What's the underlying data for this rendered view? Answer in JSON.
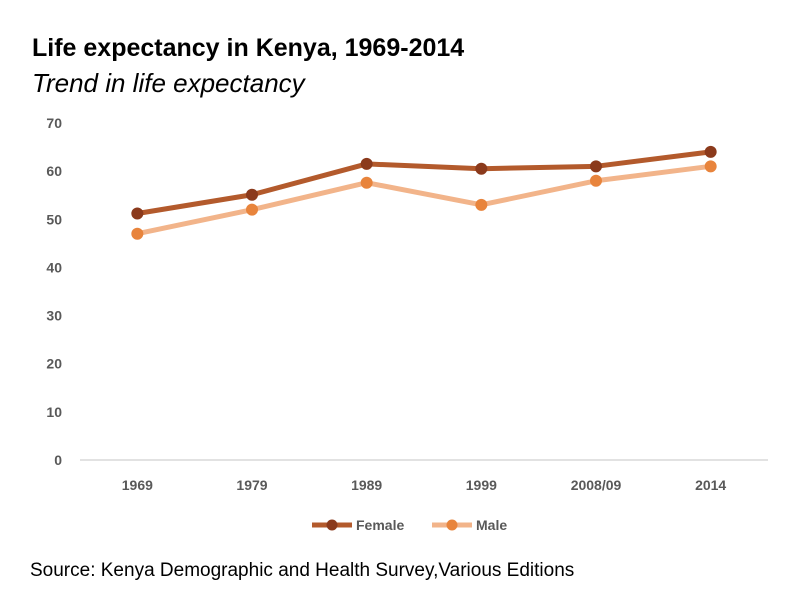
{
  "header": {
    "title": "Life expectancy in Kenya, 1969-2014",
    "subtitle": "Trend in life expectancy"
  },
  "footer": {
    "source": "Source: Kenya Demographic and Health Survey,Various Editions"
  },
  "chart_data": {
    "type": "line",
    "title": "Life expectancy in Kenya, 1969-2014",
    "subtitle": "Trend in life expectancy",
    "categories": [
      "1969",
      "1979",
      "1989",
      "1999",
      "2008/09",
      "2014"
    ],
    "series": [
      {
        "name": "Female",
        "values": [
          51.2,
          55.1,
          61.5,
          60.5,
          61.0,
          64.0
        ],
        "line_color": "#B35A2C",
        "marker_color": "#8B3A1C"
      },
      {
        "name": "Male",
        "values": [
          47.0,
          52.0,
          57.6,
          53.0,
          58.0,
          61.0
        ],
        "line_color": "#F2B48A",
        "marker_color": "#E8843C"
      }
    ],
    "ylim": [
      0,
      70
    ],
    "yticks": [
      0,
      10,
      20,
      30,
      40,
      50,
      60,
      70
    ],
    "grid": false,
    "legend": "bottom",
    "xlabel": "",
    "ylabel": ""
  }
}
